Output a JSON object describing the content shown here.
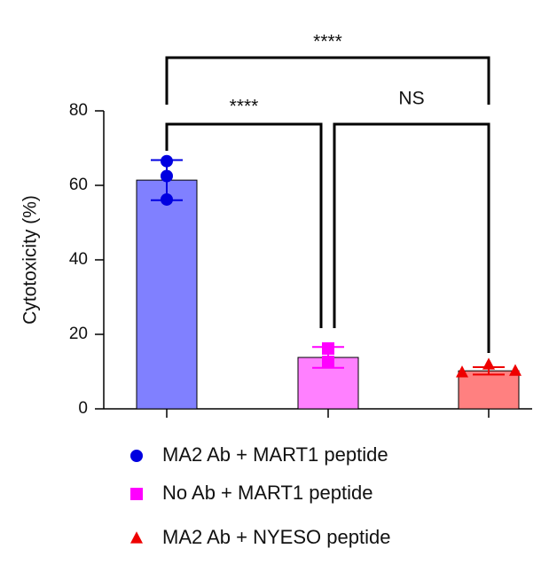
{
  "chart_data": {
    "type": "bar_scatter",
    "y_label": "Cytotoxicity (%)",
    "categories": [
      null,
      null,
      null
    ],
    "ylim": [
      0,
      80
    ],
    "yticks": [
      0,
      20,
      40,
      60,
      80
    ],
    "series": [
      {
        "name": "MA2 Ab + MART1 peptide",
        "color": "#0000e0",
        "bar_color": "#8080ff",
        "marker": "circle",
        "mean": 61.4,
        "error": 5.4,
        "points": [
          66.5,
          62.5,
          56.2
        ]
      },
      {
        "name": "No Ab + MART1 peptide",
        "color": "#ff00ff",
        "bar_color": "#ff80ff",
        "marker": "square",
        "mean": 13.8,
        "error": 2.8,
        "points": [
          16.2,
          12.6
        ]
      },
      {
        "name": "MA2 Ab + NYESO peptide",
        "color": "#ee0000",
        "bar_color": "#ff8080",
        "marker": "triangle",
        "mean": 10.2,
        "error": 1.0,
        "points": [
          9.8,
          11.9,
          10.2
        ]
      }
    ],
    "annotations": [
      "****",
      "****",
      "NS"
    ]
  }
}
